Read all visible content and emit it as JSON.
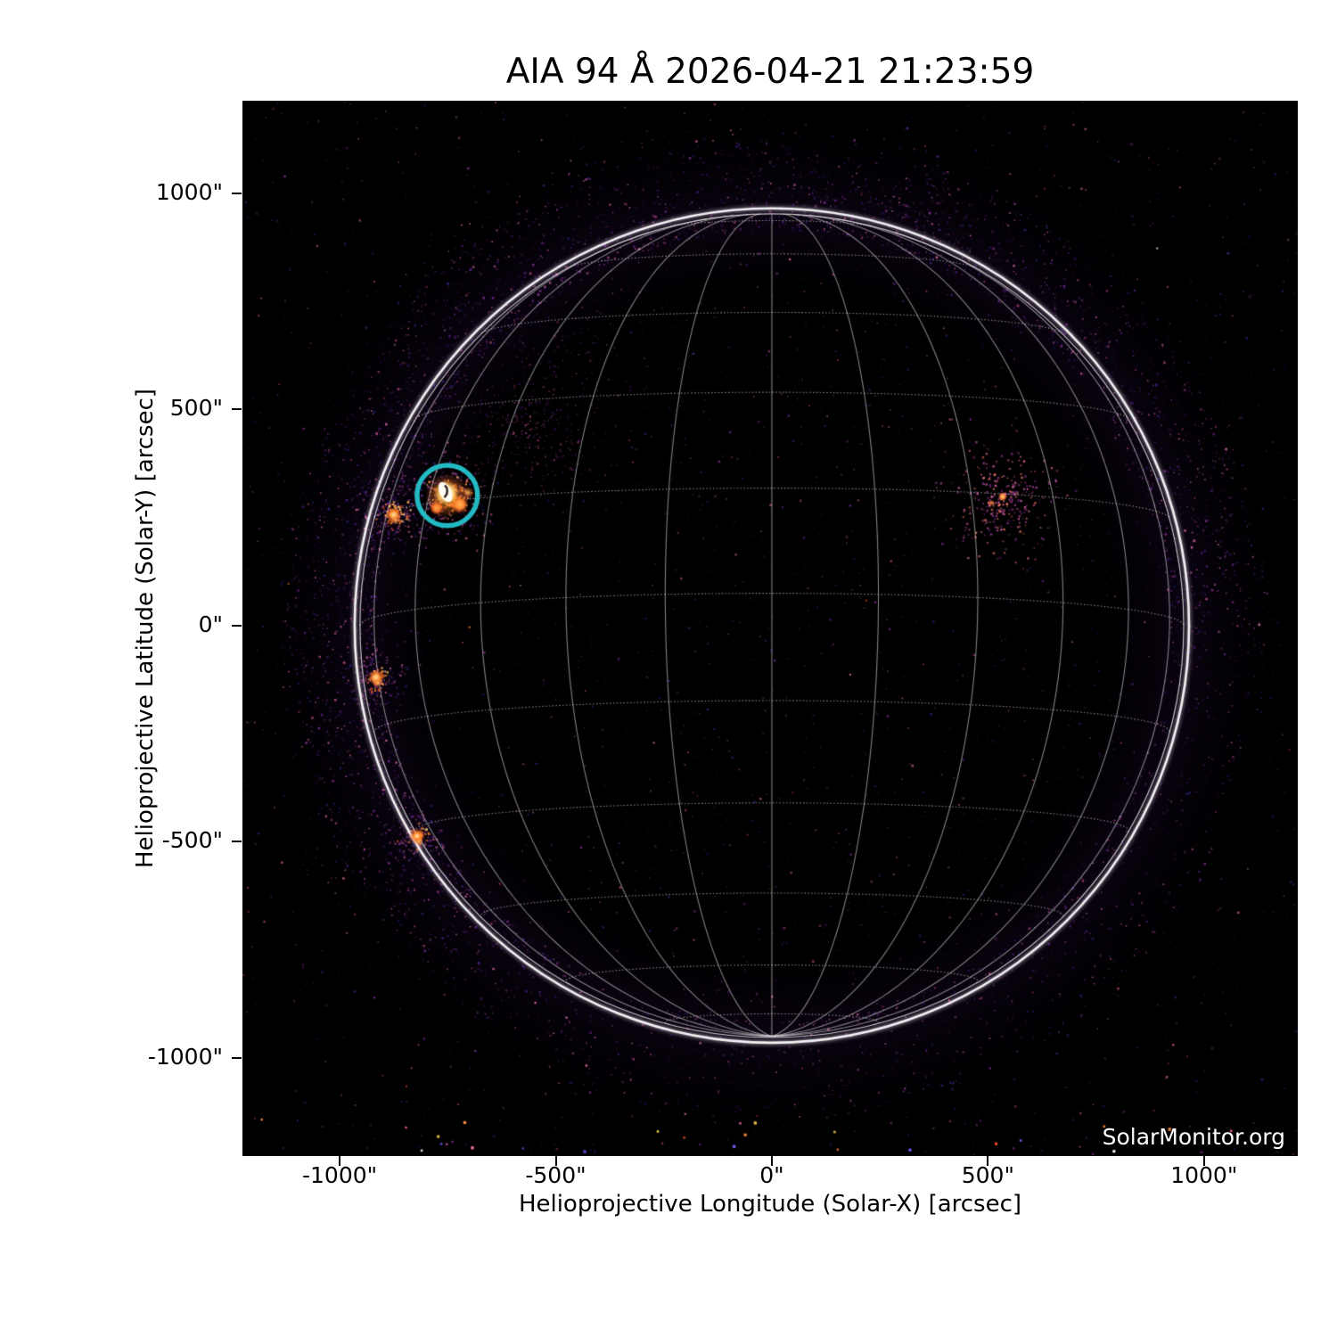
{
  "page": {
    "background_color": "#ffffff",
    "text_color": "#000000"
  },
  "chart_data": {
    "type": "heatmap",
    "title": "AIA 94 Å 2026-04-21 21:23:59",
    "observation": {
      "instrument": "AIA",
      "wavelength": "94 Å",
      "datetime": "2026-04-21 21:23:59"
    },
    "xlabel": "Helioprojective Longitude (Solar-X) [arcsec]",
    "ylabel": "Helioprojective Latitude (Solar-Y) [arcsec]",
    "watermark": "SolarMonitor.org",
    "xlim": [
      -1225,
      1217
    ],
    "ylim": [
      -1227,
      1214
    ],
    "x_ticks": [
      {
        "value": -1000,
        "label": "-1000\""
      },
      {
        "value": -500,
        "label": "-500\""
      },
      {
        "value": 0,
        "label": "0\""
      },
      {
        "value": 500,
        "label": "500\""
      },
      {
        "value": 1000,
        "label": "1000\""
      }
    ],
    "y_ticks": [
      {
        "value": 1000,
        "label": "1000\""
      },
      {
        "value": 500,
        "label": "500\""
      },
      {
        "value": 0,
        "label": "0\""
      },
      {
        "value": -500,
        "label": "-500\""
      },
      {
        "value": -1000,
        "label": "-1000\""
      }
    ],
    "grid_on": true,
    "background_color": "#000000",
    "solar_disk": {
      "radius_arcsec": 953,
      "b0_deg": -4.5,
      "grid_spacing_deg": 15,
      "grid_color": "rgba(255,255,255,0.5)",
      "limb_color": "#ffffff"
    },
    "annotation_circle": {
      "x": -751,
      "y": 301,
      "radius_arcsec": 70,
      "color": "#23bac4",
      "stroke_px": 5.5
    },
    "active_regions": [
      {
        "id": "circled-bright-region",
        "type": "bright-core",
        "x": -751,
        "y": 301,
        "sigma_arcsec": 50,
        "dots": 280,
        "core_color": "#fffdf2",
        "halo_color": "#ff9a35"
      },
      {
        "id": "east-limb-spot-north",
        "type": "limb-spot",
        "x": -875,
        "y": 256,
        "sigma_arcsec": 38,
        "dots": 150,
        "color": "#ff9a3a"
      },
      {
        "id": "east-limb-spot-mid",
        "type": "limb-spot",
        "x": -916,
        "y": -120,
        "sigma_arcsec": 32,
        "dots": 130,
        "color": "#ff9a40"
      },
      {
        "id": "southeast-limb-spot",
        "type": "limb-spot",
        "x": -821,
        "y": -487,
        "sigma_arcsec": 30,
        "dots": 110,
        "color": "#ff8c30"
      },
      {
        "id": "west-diffuse-region",
        "type": "diffuse-cluster",
        "x": 530,
        "y": 290,
        "sigma_arcsec": 62,
        "dots": 250,
        "color": "#c4538f",
        "core_color": "#ff8c3a"
      },
      {
        "id": "northeast-faint-cloud",
        "type": "faint-cloud",
        "x": -540,
        "y": 435,
        "sigma_arcsec": 72,
        "dots": 250,
        "color": "#8a2f8f"
      },
      {
        "id": "north-faint-cloud",
        "type": "faint-cloud",
        "x": -520,
        "y": 620,
        "sigma_arcsec": 110,
        "dots": 150,
        "color": "#6f2a9b"
      }
    ],
    "noise": {
      "seed": 20260421,
      "background_dots": 2400,
      "interior_dots": 750,
      "limb_halo_dots": 2300,
      "bottom_specks": 24,
      "random_specks": 14,
      "halo_clusters": [
        {
          "angle_deg": 180,
          "spread_deg": 35,
          "dots": 800
        },
        {
          "angle_deg": 135,
          "spread_deg": 20,
          "dots": 350
        },
        {
          "angle_deg": 210,
          "spread_deg": 15,
          "dots": 300
        },
        {
          "angle_deg": 60,
          "spread_deg": 18,
          "dots": 400
        },
        {
          "angle_deg": 90,
          "spread_deg": 20,
          "dots": 280
        },
        {
          "angle_deg": 12,
          "spread_deg": 10,
          "dots": 260
        }
      ],
      "palette": [
        "#1d0a33",
        "#2f1052",
        "#44176f",
        "#591f8c",
        "#6f2a9b",
        "#8c3596",
        "#a8437f",
        "#c75898",
        "#e66fb2",
        "#2b2a8f"
      ],
      "orange_palette": [
        "#ff8c30",
        "#ffab4a",
        "#e2571e",
        "#ff6a2a",
        "#ffd070"
      ],
      "pink_palette": [
        "#c4538f",
        "#a03f9b",
        "#de68a8",
        "#8a2f8f",
        "#ff7f6a"
      ],
      "bright_speck_colors": [
        "#ff4a2a",
        "#ff8c3a",
        "#ffd34f",
        "#ff6fae",
        "#ffffff",
        "#7a5cff"
      ]
    }
  }
}
